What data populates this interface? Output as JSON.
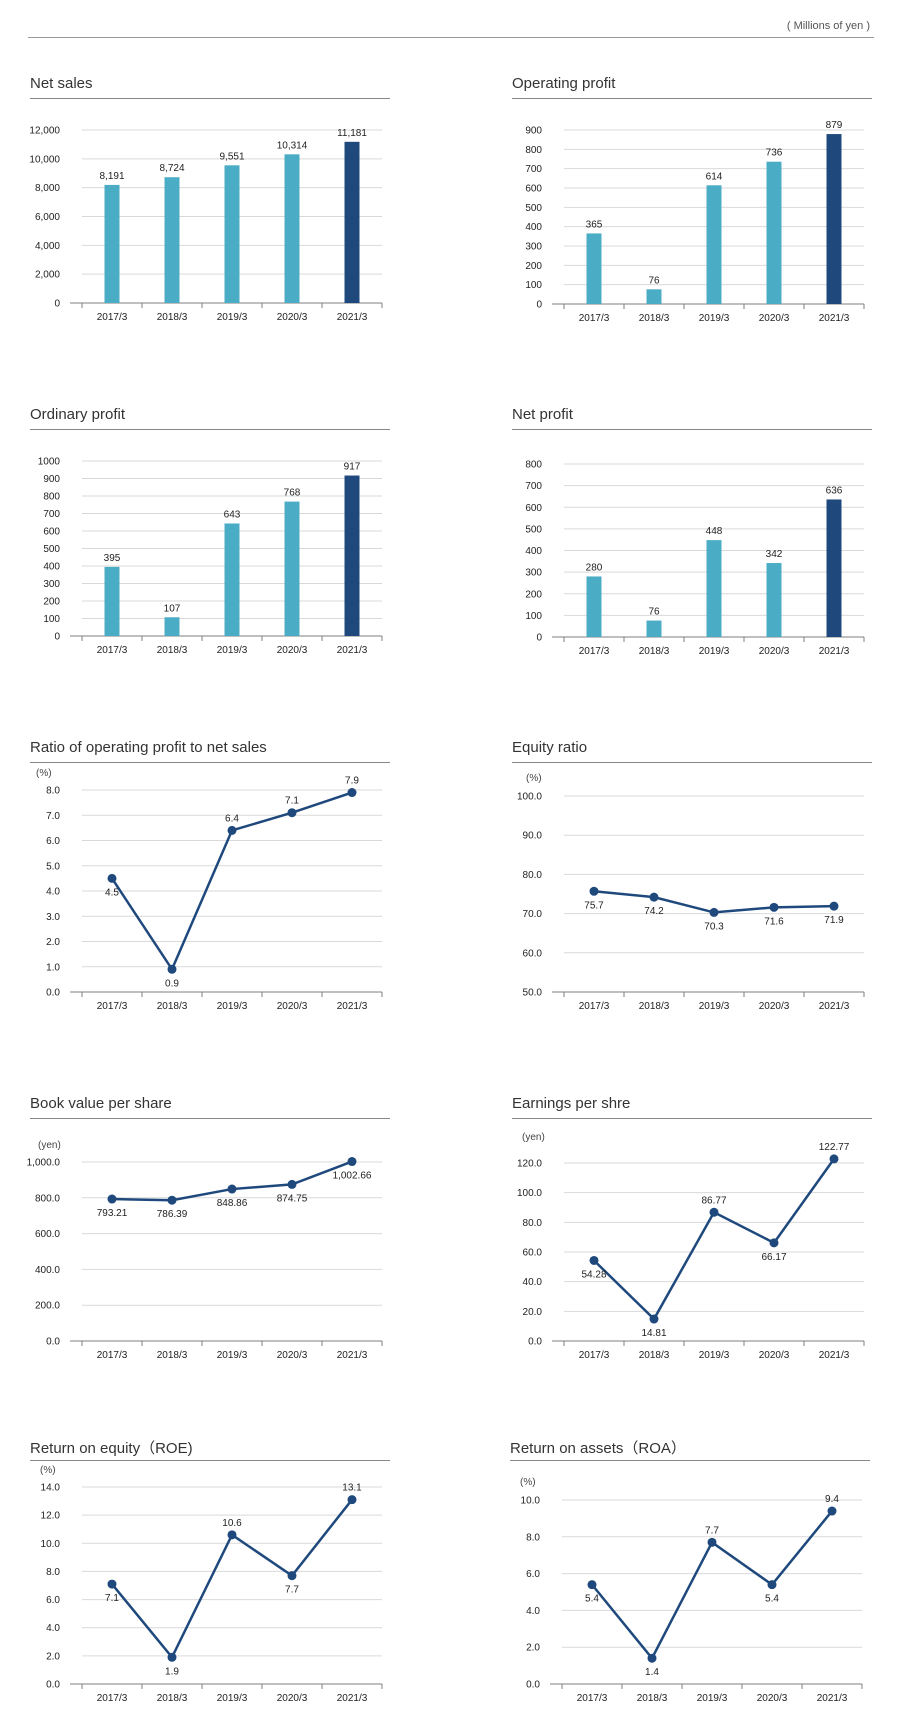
{
  "header": {
    "unit_label": "( Millions of yen )"
  },
  "colors": {
    "bar": "#4bacc6",
    "bar_highlight": "#1f497d",
    "line": "#1f497d",
    "grid": "#d9d9d9",
    "axis": "#7f7f7f"
  },
  "chart_data": [
    {
      "id": "net-sales",
      "type": "bar",
      "title": "Net sales",
      "unit": "",
      "categories": [
        "2017/3",
        "2018/3",
        "2019/3",
        "2020/3",
        "2021/3"
      ],
      "values": [
        8191,
        8724,
        9551,
        10314,
        11181
      ],
      "value_labels": [
        "8,191",
        "8,724",
        "9,551",
        "10,314",
        "11,181"
      ],
      "yticks": [
        0,
        2000,
        4000,
        6000,
        8000,
        10000,
        12000
      ],
      "ytick_labels": [
        "0",
        "2,000",
        "4,000",
        "6,000",
        "8,000",
        "10,000",
        "12,000"
      ],
      "ylim": [
        0,
        12000
      ],
      "highlight_index": 4
    },
    {
      "id": "operating-profit",
      "type": "bar",
      "title": "Operating profit",
      "unit": "",
      "categories": [
        "2017/3",
        "2018/3",
        "2019/3",
        "2020/3",
        "2021/3"
      ],
      "values": [
        365,
        76,
        614,
        736,
        879
      ],
      "value_labels": [
        "365",
        "76",
        "614",
        "736",
        "879"
      ],
      "yticks": [
        0,
        100,
        200,
        300,
        400,
        500,
        600,
        700,
        800,
        900
      ],
      "ytick_labels": [
        "0",
        "100",
        "200",
        "300",
        "400",
        "500",
        "600",
        "700",
        "800",
        "900"
      ],
      "ylim": [
        0,
        900
      ],
      "highlight_index": 4
    },
    {
      "id": "ordinary-profit",
      "type": "bar",
      "title": "Ordinary profit",
      "unit": "",
      "categories": [
        "2017/3",
        "2018/3",
        "2019/3",
        "2020/3",
        "2021/3"
      ],
      "values": [
        395,
        107,
        643,
        768,
        917
      ],
      "value_labels": [
        "395",
        "107",
        "643",
        "768",
        "917"
      ],
      "yticks": [
        0,
        100,
        200,
        300,
        400,
        500,
        600,
        700,
        800,
        900,
        1000
      ],
      "ytick_labels": [
        "0",
        "100",
        "200",
        "300",
        "400",
        "500",
        "600",
        "700",
        "800",
        "900",
        "1000"
      ],
      "ylim": [
        0,
        1000
      ],
      "highlight_index": 4
    },
    {
      "id": "net-profit",
      "type": "bar",
      "title": "Net profit",
      "unit": "",
      "categories": [
        "2017/3",
        "2018/3",
        "2019/3",
        "2020/3",
        "2021/3"
      ],
      "values": [
        280,
        76,
        448,
        342,
        636
      ],
      "value_labels": [
        "280",
        "76",
        "448",
        "342",
        "636"
      ],
      "yticks": [
        0,
        100,
        200,
        300,
        400,
        500,
        600,
        700,
        800
      ],
      "ytick_labels": [
        "0",
        "100",
        "200",
        "300",
        "400",
        "500",
        "600",
        "700",
        "800"
      ],
      "ylim": [
        0,
        800
      ],
      "highlight_index": 4
    },
    {
      "id": "op-ratio",
      "type": "line",
      "title": "Ratio of operating profit to net sales",
      "unit": "(%)",
      "categories": [
        "2017/3",
        "2018/3",
        "2019/3",
        "2020/3",
        "2021/3"
      ],
      "values": [
        4.5,
        0.9,
        6.4,
        7.1,
        7.9
      ],
      "value_labels": [
        "4.5",
        "0.9",
        "6.4",
        "7.1",
        "7.9"
      ],
      "label_pos": [
        "below",
        "below",
        "above",
        "above",
        "above"
      ],
      "yticks": [
        0,
        1,
        2,
        3,
        4,
        5,
        6,
        7,
        8
      ],
      "ytick_labels": [
        "0.0",
        "1.0",
        "2.0",
        "3.0",
        "4.0",
        "5.0",
        "6.0",
        "7.0",
        "8.0"
      ],
      "ylim": [
        0,
        8
      ]
    },
    {
      "id": "equity-ratio",
      "type": "line",
      "title": "Equity ratio",
      "unit": "(%)",
      "categories": [
        "2017/3",
        "2018/3",
        "2019/3",
        "2020/3",
        "2021/3"
      ],
      "values": [
        75.7,
        74.2,
        70.3,
        71.6,
        71.9
      ],
      "value_labels": [
        "75.7",
        "74.2",
        "70.3",
        "71.6",
        "71.9"
      ],
      "label_pos": [
        "below",
        "below",
        "below",
        "below",
        "below"
      ],
      "yticks": [
        50,
        60,
        70,
        80,
        90,
        100
      ],
      "ytick_labels": [
        "50.0",
        "60.0",
        "70.0",
        "80.0",
        "90.0",
        "100.0"
      ],
      "ylim": [
        50,
        100
      ]
    },
    {
      "id": "bvps",
      "type": "line",
      "title": "Book value per share",
      "unit": "(yen)",
      "categories": [
        "2017/3",
        "2018/3",
        "2019/3",
        "2020/3",
        "2021/3"
      ],
      "values": [
        793.21,
        786.39,
        848.86,
        874.75,
        1002.66
      ],
      "value_labels": [
        "793.21",
        "786.39",
        "848.86",
        "874.75",
        "1,002.66"
      ],
      "label_pos": [
        "below",
        "below",
        "below",
        "below",
        "below"
      ],
      "yticks": [
        0,
        200,
        400,
        600,
        800,
        1000
      ],
      "ytick_labels": [
        "0.0",
        "200.0",
        "400.0",
        "600.0",
        "800.0",
        "1,000.0"
      ],
      "ylim": [
        0,
        1000
      ]
    },
    {
      "id": "eps",
      "type": "line",
      "title": "Earnings per shre",
      "unit": "(yen)",
      "categories": [
        "2017/3",
        "2018/3",
        "2019/3",
        "2020/3",
        "2021/3"
      ],
      "values": [
        54.28,
        14.81,
        86.77,
        66.17,
        122.77
      ],
      "value_labels": [
        "54.28",
        "14.81",
        "86.77",
        "66.17",
        "122.77"
      ],
      "label_pos": [
        "below",
        "below",
        "above",
        "below",
        "above"
      ],
      "yticks": [
        0,
        20,
        40,
        60,
        80,
        100,
        120
      ],
      "ytick_labels": [
        "0.0",
        "20.0",
        "40.0",
        "60.0",
        "80.0",
        "100.0",
        "120.0"
      ],
      "ylim": [
        0,
        120
      ]
    },
    {
      "id": "roe",
      "type": "line",
      "title": "Return on equity（ROE)",
      "unit": "(%)",
      "categories": [
        "2017/3",
        "2018/3",
        "2019/3",
        "2020/3",
        "2021/3"
      ],
      "values": [
        7.1,
        1.9,
        10.6,
        7.7,
        13.1
      ],
      "value_labels": [
        "7.1",
        "1.9",
        "10.6",
        "7.7",
        "13.1"
      ],
      "label_pos": [
        "below",
        "below",
        "above",
        "below",
        "above"
      ],
      "yticks": [
        0,
        2,
        4,
        6,
        8,
        10,
        12,
        14
      ],
      "ytick_labels": [
        "0.0",
        "2.0",
        "4.0",
        "6.0",
        "8.0",
        "10.0",
        "12.0",
        "14.0"
      ],
      "ylim": [
        0,
        14
      ]
    },
    {
      "id": "roa",
      "type": "line",
      "title": "Return on assets（ROA）",
      "unit": "(%)",
      "categories": [
        "2017/3",
        "2018/3",
        "2019/3",
        "2020/3",
        "2021/3"
      ],
      "values": [
        5.4,
        1.4,
        7.7,
        5.4,
        9.4
      ],
      "value_labels": [
        "5.4",
        "1.4",
        "7.7",
        "5.4",
        "9.4"
      ],
      "label_pos": [
        "below",
        "below",
        "above",
        "below",
        "above"
      ],
      "yticks": [
        0,
        2,
        4,
        6,
        8,
        10
      ],
      "ytick_labels": [
        "0.0",
        "2.0",
        "4.0",
        "6.0",
        "8.0",
        "10.0"
      ],
      "ylim": [
        0,
        10
      ]
    }
  ]
}
